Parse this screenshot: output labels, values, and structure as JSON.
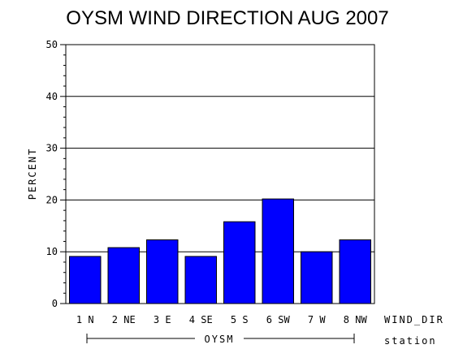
{
  "chart_data": {
    "type": "bar",
    "title": "OYSM WIND DIRECTION AUG 2007",
    "ylabel": "PERCENT",
    "xlabel": "WIND_DIR",
    "group_label": "OYSM",
    "group_axis_label": "station",
    "categories": [
      "1 N",
      "2 NE",
      "3 E",
      "4 SE",
      "5 S",
      "6 SW",
      "7 W",
      "8 NW"
    ],
    "values": [
      9.1,
      10.8,
      12.3,
      9.1,
      15.8,
      20.2,
      10.0,
      12.3
    ],
    "ylim": [
      0,
      50
    ],
    "yticks": [
      0,
      10,
      20,
      30,
      40,
      50
    ],
    "grid": true,
    "bar_color": "#0000ff"
  }
}
